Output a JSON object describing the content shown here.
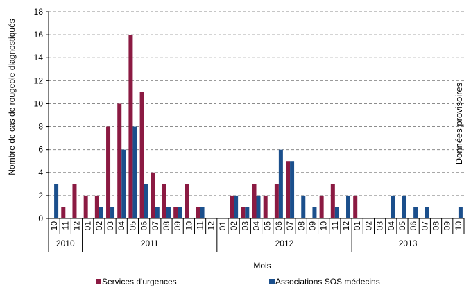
{
  "chart_data": {
    "type": "bar",
    "title": "",
    "xlabel": "Mois",
    "ylabel": "Nombre de cas de rougeole diagnostiqués",
    "ylim": [
      0,
      18
    ],
    "yticks": [
      0,
      2,
      4,
      6,
      8,
      10,
      12,
      14,
      16,
      18
    ],
    "grid": "horizontal dashed",
    "legend_position": "bottom",
    "annotation": "Données provisoires",
    "categories": [
      "10",
      "11",
      "12",
      "01",
      "02",
      "03",
      "04",
      "05",
      "06",
      "07",
      "08",
      "09",
      "10",
      "11",
      "12",
      "01",
      "02",
      "03",
      "04",
      "05",
      "06",
      "07",
      "08",
      "09",
      "10",
      "11",
      "12",
      "01",
      "02",
      "03",
      "04",
      "05",
      "06",
      "07",
      "08",
      "09",
      "10"
    ],
    "years": [
      {
        "label": "2010",
        "start": 0,
        "end": 2
      },
      {
        "label": "2011",
        "start": 3,
        "end": 14
      },
      {
        "label": "2012",
        "start": 15,
        "end": 26
      },
      {
        "label": "2013",
        "start": 27,
        "end": 36
      }
    ],
    "series": [
      {
        "name": "Services d'urgences",
        "color": "#8B1A42",
        "values": [
          0,
          1,
          3,
          2,
          2,
          8,
          10,
          16,
          11,
          4,
          3,
          1,
          3,
          1,
          0,
          0,
          2,
          1,
          3,
          2,
          3,
          5,
          0,
          0,
          2,
          3,
          0,
          2,
          0,
          0,
          0,
          0,
          0,
          0,
          0,
          0,
          0
        ]
      },
      {
        "name": "Associations SOS médecins",
        "color": "#1B4F8C",
        "values": [
          3,
          0,
          0,
          0,
          1,
          1,
          6,
          8,
          3,
          1,
          1,
          1,
          0,
          1,
          0,
          0,
          2,
          1,
          2,
          0,
          6,
          5,
          2,
          1,
          0,
          1,
          2,
          0,
          0,
          0,
          2,
          2,
          1,
          1,
          0,
          0,
          1
        ]
      }
    ]
  }
}
